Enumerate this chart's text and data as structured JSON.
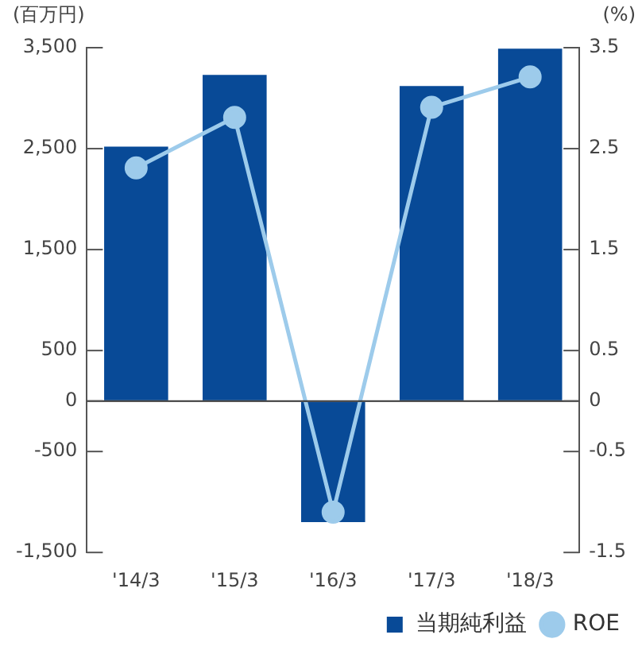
{
  "chart_data": {
    "type": "bar",
    "ylabel": "(百万円)",
    "y2label": "(%)",
    "categories": [
      "'14/3",
      "'15/3",
      "'16/3",
      "'17/3",
      "'18/3"
    ],
    "series": [
      {
        "name": "当期純利益",
        "color": "#084a97",
        "values": [
          2520,
          3230,
          -1200,
          3120,
          3490
        ]
      },
      {
        "name": "ROE",
        "type": "line",
        "axis": "y2",
        "color": "#9dcbeb",
        "marker": "circle",
        "values": [
          2.31,
          2.81,
          -1.1,
          2.91,
          3.21
        ]
      }
    ],
    "ylim": [
      -1500,
      3500
    ],
    "yticks": [
      {
        "value": 3500,
        "label": "3,500"
      },
      {
        "value": 2500,
        "label": "2,500"
      },
      {
        "value": 1500,
        "label": "1,500"
      },
      500,
      0,
      -500,
      {
        "value": -1500,
        "label": "-1,500"
      }
    ],
    "y2lim": [
      -1.5,
      3.5
    ],
    "y2ticks": [
      3.5,
      2.5,
      1.5,
      0.5,
      0,
      -0.5,
      -1.5
    ],
    "ref_lines": [
      {
        "axis": "y",
        "value": 0,
        "color": "#333333"
      }
    ],
    "grid": false,
    "legend": "bottom right"
  }
}
